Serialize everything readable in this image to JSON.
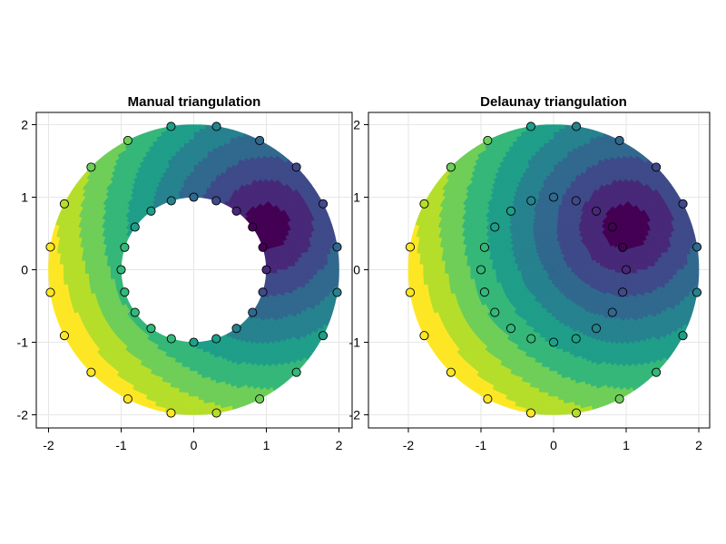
{
  "chart_data": [
    {
      "type": "filled-contour",
      "title": "Manual triangulation",
      "xlim": [
        -2.2,
        2.2
      ],
      "ylim": [
        -2.2,
        2.2
      ],
      "xticks": [
        -2,
        -1,
        0,
        1,
        2
      ],
      "yticks": [
        -2,
        -1,
        0,
        1,
        2
      ],
      "xtick_labels": [
        "-2",
        "-1",
        "0",
        "1",
        "2"
      ],
      "ytick_labels": [
        "-2",
        "-1",
        "0",
        "1",
        "2"
      ],
      "grid": true,
      "hole": true,
      "inner_radius": 1,
      "outer_radius": 2,
      "min_point": [
        1.0,
        0.6
      ],
      "colormap": "viridis",
      "markers": "scatter points on inner and outer ring, colored by value"
    },
    {
      "type": "filled-contour",
      "title": "Delaunay triangulation",
      "xlim": [
        -2.2,
        2.2
      ],
      "ylim": [
        -2.2,
        2.2
      ],
      "xticks": [
        -2,
        -1,
        0,
        1,
        2
      ],
      "yticks": [
        -2,
        -1,
        0,
        1,
        2
      ],
      "xtick_labels": [
        "-2",
        "-1",
        "0",
        "1",
        "2"
      ],
      "ytick_labels": [
        "-2",
        "-1",
        "0",
        "1",
        "2"
      ],
      "grid": true,
      "hole": false,
      "inner_radius": 1,
      "outer_radius": 2,
      "min_point": [
        1.0,
        0.6
      ],
      "colormap": "viridis",
      "markers": "scatter points on inner and outer ring, colored by value"
    }
  ],
  "colors": {
    "viridis": [
      "#440154",
      "#482878",
      "#3e4a89",
      "#31688e",
      "#26828e",
      "#1f9e89",
      "#35b779",
      "#6ece58",
      "#b5de2b",
      "#fde725"
    ],
    "frame": "#000000",
    "grid": "#e6e6e6"
  }
}
